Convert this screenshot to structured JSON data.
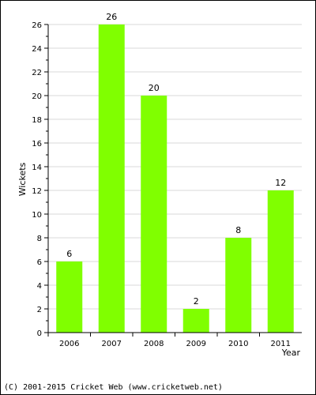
{
  "chart_data": {
    "type": "bar",
    "categories": [
      "2006",
      "2007",
      "2008",
      "2009",
      "2010",
      "2011"
    ],
    "values": [
      6,
      26,
      20,
      2,
      8,
      12
    ],
    "data_labels": [
      "6",
      "26",
      "20",
      "2",
      "8",
      "12"
    ],
    "title": "",
    "xlabel": "Year",
    "ylabel": "Wickets",
    "ylim": [
      0,
      26
    ],
    "y_ticks": [
      "0",
      "2",
      "4",
      "6",
      "8",
      "10",
      "12",
      "14",
      "16",
      "18",
      "20",
      "22",
      "24",
      "26"
    ],
    "grid": true,
    "colors": {
      "bar": "#80ff00",
      "grid": "#d9d9d9",
      "axis": "#000000"
    }
  },
  "footer": {
    "copyright": "(C) 2001-2015 Cricket Web (www.cricketweb.net)"
  }
}
